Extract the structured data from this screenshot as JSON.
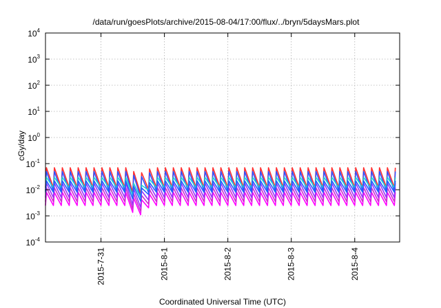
{
  "chart_data": {
    "type": "line",
    "title": "/data/run/goesPlots/archive/2015-08-04/17:00/flux/../bryn/5daysMars.plot",
    "xlabel": "Coordinated Universal Time (UTC)",
    "ylabel": "cGy/day",
    "yscale": "log",
    "ylim": [
      0.0001,
      10000
    ],
    "y_ticks": [
      {
        "base": "10",
        "exp": "-4"
      },
      {
        "base": "10",
        "exp": "-3"
      },
      {
        "base": "10",
        "exp": "-2"
      },
      {
        "base": "10",
        "exp": "-1"
      },
      {
        "base": "10",
        "exp": "0"
      },
      {
        "base": "10",
        "exp": "1"
      },
      {
        "base": "10",
        "exp": "2"
      },
      {
        "base": "10",
        "exp": "3"
      },
      {
        "base": "10",
        "exp": "4"
      }
    ],
    "xlim": [
      "2015-07-30T03:00",
      "2015-08-04T17:00"
    ],
    "x_ticks": [
      "2015-7-31",
      "2015-8-1",
      "2015-8-2",
      "2015-8-3",
      "2015-8-4"
    ],
    "grid": true,
    "legend": false,
    "pulse_period_hours": 3,
    "dip_center": "2015-07-31T14:00",
    "series": [
      {
        "color": "#ff00ff",
        "peak": 0.008,
        "trough": 0.0025,
        "dip_min": 0.0009
      },
      {
        "color": "#cc2ecc",
        "peak": 0.012,
        "trough": 0.0035,
        "dip_min": 0.0012
      },
      {
        "color": "#9b30ff",
        "peak": 0.018,
        "trough": 0.005,
        "dip_min": 0.0017
      },
      {
        "color": "#ff3030",
        "peak": 0.07,
        "trough": 0.012,
        "dip_min": 0.006
      },
      {
        "color": "#3050ff",
        "peak": 0.05,
        "trough": 0.009,
        "dip_min": 0.0045
      },
      {
        "color": "#20d0d0",
        "peak": 0.03,
        "trough": 0.012,
        "dip_min": 0.004
      },
      {
        "color": "#2060ff",
        "peak": 0.022,
        "trough": 0.008,
        "dip_min": 0.003
      }
    ]
  }
}
